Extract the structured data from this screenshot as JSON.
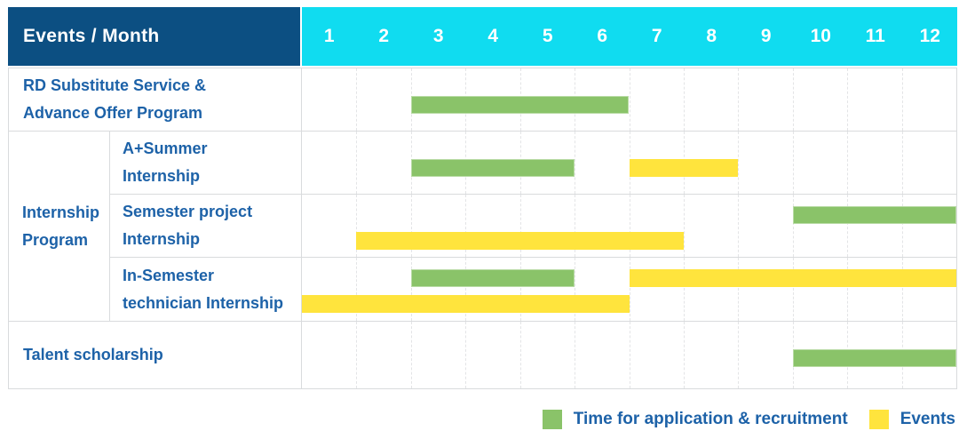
{
  "header": {
    "title": "Events / Month",
    "months": [
      "1",
      "2",
      "3",
      "4",
      "5",
      "6",
      "7",
      "8",
      "9",
      "10",
      "11",
      "12"
    ]
  },
  "colors": {
    "navy": "#0c4f82",
    "cyan": "#10dcf0",
    "green": "#8ac369",
    "yellow": "#ffe43d",
    "label_blue": "#1d62a8",
    "grid": "#d9dbdd",
    "grid_dash": "#e3e4e6"
  },
  "chart_data": {
    "type": "gantt",
    "x_unit": "month",
    "x_ticks": [
      1,
      2,
      3,
      4,
      5,
      6,
      7,
      8,
      9,
      10,
      11,
      12
    ],
    "series": [
      {
        "key": "green",
        "name": "Time for application & recruitment"
      },
      {
        "key": "yellow",
        "name": "Events"
      }
    ],
    "groups": [
      {
        "label_lines": [],
        "rows": [
          {
            "label_lines": [
              "RD Substitute Service &",
              "Advance Offer Program"
            ],
            "lanes": 1,
            "bars": [
              {
                "series": "green",
                "start_month": 3,
                "end_month": 6,
                "lane": 0
              }
            ]
          }
        ]
      },
      {
        "label_lines": [
          "Internship",
          "Program"
        ],
        "rows": [
          {
            "label_lines": [
              "A+Summer",
              "Internship"
            ],
            "lanes": 1,
            "bars": [
              {
                "series": "green",
                "start_month": 3,
                "end_month": 5,
                "lane": 0
              },
              {
                "series": "yellow",
                "start_month": 7,
                "end_month": 8,
                "lane": 0
              }
            ]
          },
          {
            "label_lines": [
              "Semester project",
              "Internship"
            ],
            "lanes": 2,
            "bars": [
              {
                "series": "green",
                "start_month": 10,
                "end_month": 12,
                "lane": 0
              },
              {
                "series": "yellow",
                "start_month": 2,
                "end_month": 7,
                "lane": 1
              }
            ]
          },
          {
            "label_lines": [
              "In-Semester",
              "technician Internship"
            ],
            "lanes": 2,
            "bars": [
              {
                "series": "green",
                "start_month": 3,
                "end_month": 5,
                "lane": 0
              },
              {
                "series": "yellow",
                "start_month": 7,
                "end_month": 12,
                "lane": 0
              },
              {
                "series": "yellow",
                "start_month": 1,
                "end_month": 6,
                "lane": 1
              }
            ]
          }
        ]
      },
      {
        "label_lines": [],
        "rows": [
          {
            "label_lines": [
              "Talent scholarship"
            ],
            "lanes": 1,
            "tall": true,
            "bars": [
              {
                "series": "green",
                "start_month": 10,
                "end_month": 12,
                "lane": 0
              }
            ]
          }
        ]
      }
    ]
  },
  "legend": {
    "items": [
      {
        "swatch": "green",
        "label": "Time for application & recruitment"
      },
      {
        "swatch": "yellow",
        "label": "Events"
      }
    ]
  }
}
